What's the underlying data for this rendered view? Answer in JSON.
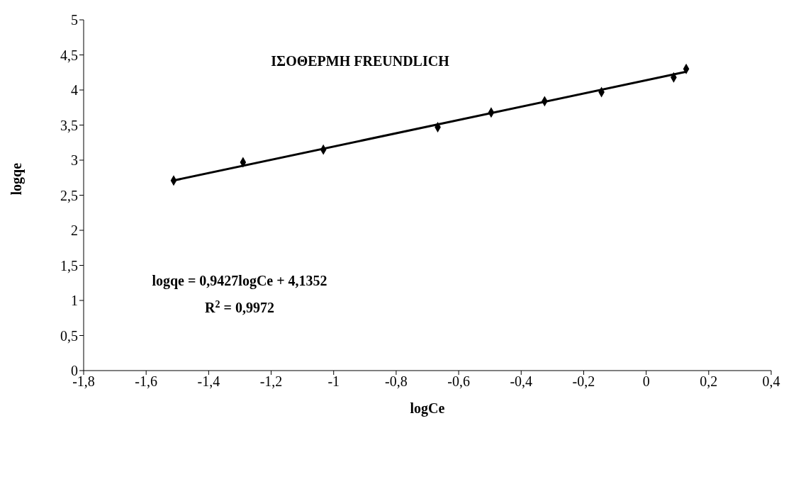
{
  "chart_data": {
    "type": "scatter",
    "title": "ΙΣΟΘΕΡΜΗ FREUNDLICH",
    "xlabel": "logCe",
    "ylabel": "logqe",
    "series": [
      {
        "marker": "diamond",
        "color": "#000000",
        "x": [
          -1.512,
          -1.29,
          -1.033,
          -0.667,
          -0.496,
          -0.325,
          -0.143,
          0.088,
          0.128
        ],
        "values": [
          2.71,
          2.97,
          3.15,
          3.47,
          3.68,
          3.84,
          3.97,
          4.18,
          4.3
        ]
      },
      {
        "type": "line",
        "marker": "none",
        "color": "#000000",
        "x": [
          -1.512,
          0.128
        ],
        "values": [
          2.71,
          4.26
        ]
      }
    ],
    "xlim": [
      -1.8,
      0.4
    ],
    "xticks": [
      {
        "value": -1.8,
        "label": "-1,8"
      },
      {
        "value": -1.6,
        "label": "-1,6"
      },
      {
        "value": -1.4,
        "label": "-1,4"
      },
      {
        "value": -1.2,
        "label": "-1,2"
      },
      {
        "value": -1,
        "label": "-1"
      },
      {
        "value": -0.8,
        "label": "-0,8"
      },
      {
        "value": -0.6,
        "label": "-0,6"
      },
      {
        "value": -0.4,
        "label": "-0,4"
      },
      {
        "value": -0.2,
        "label": "-0,2"
      },
      {
        "value": 0,
        "label": "0"
      },
      {
        "value": 0.2,
        "label": "0,2"
      },
      {
        "value": 0.4,
        "label": "0,4"
      }
    ],
    "ylim": [
      0,
      5
    ],
    "yticks": [
      0,
      {
        "value": 0.5,
        "label": "0,5"
      },
      1,
      {
        "value": 1.5,
        "label": "1,5"
      },
      2,
      {
        "value": 2.5,
        "label": "2,5"
      },
      3,
      {
        "value": 3.5,
        "label": "3,5"
      },
      4,
      {
        "value": 4.5,
        "label": "4,5"
      },
      5
    ],
    "annotations": [
      "logqe = 0,9427logCe + 4,1352",
      "R$^{2}$ = 0,9972"
    ],
    "grid": false,
    "legend": false,
    "line_style": "solid"
  }
}
